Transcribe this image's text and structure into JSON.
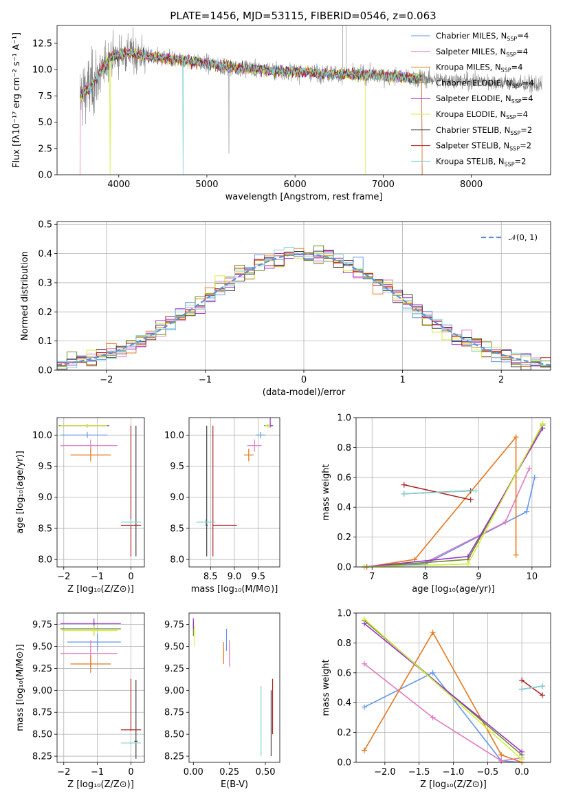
{
  "colors": {
    "chabrier_miles": "#6495ed",
    "salpeter_miles": "#e377c2",
    "kroupa_miles": "#e8751a",
    "chabrier_elodie": "#6b8e23",
    "salpeter_elodie": "#9932cc",
    "kroupa_elodie": "#d4ed3a",
    "chabrier_stelib": "#404040",
    "salpeter_stelib": "#b22222",
    "kroupa_stelib": "#87d3d3",
    "data": "#808080",
    "normal": "#5b8fd8"
  },
  "chart_data": [
    {
      "id": "spectrum",
      "type": "line",
      "title": "PLATE=1456, MJD=53115, FIBERID=0546, z=0.063",
      "xlabel": "wavelength [Angstrom, rest frame]",
      "ylabel": "Flux [fλ10⁻¹⁷ erg cm⁻² s⁻¹ A⁻¹]",
      "xlim": [
        3300,
        8900
      ],
      "ylim": [
        0,
        14.2
      ],
      "xticks": [
        4000,
        5000,
        6000,
        7000,
        8000
      ],
      "yticks": [
        0.0,
        2.5,
        5.0,
        7.5,
        10.0,
        12.5
      ],
      "xticklabels": [
        "4000",
        "5000",
        "6000",
        "7000",
        "8000"
      ],
      "yticklabels": [
        "0.0",
        "2.5",
        "5.0",
        "7.5",
        "10.0",
        "12.5"
      ],
      "grid": false,
      "legend_position": "top-right",
      "data_trend": {
        "x": [
          3560,
          3700,
          3900,
          4100,
          4400,
          4800,
          5200,
          5600,
          6000,
          6400,
          6800,
          7200,
          7500,
          8000,
          8300,
          8800
        ],
        "y": [
          7.5,
          8.5,
          11.2,
          11.6,
          11.2,
          10.8,
          10.3,
          10.0,
          9.8,
          9.6,
          9.5,
          9.3,
          9.1,
          8.9,
          8.8,
          8.5
        ]
      },
      "models_range": [
        3560,
        7440
      ],
      "legend": [
        {
          "key": "chabrier_miles",
          "label": "Chabrier MILES, N",
          "sub": "SSP",
          "suffix": "=4"
        },
        {
          "key": "salpeter_miles",
          "label": "Salpeter MILES, N",
          "sub": "SSP",
          "suffix": "=4"
        },
        {
          "key": "kroupa_miles",
          "label": "Kroupa MILES, N",
          "sub": "SSP",
          "suffix": "=4"
        },
        {
          "key": "chabrier_elodie",
          "label": "Chabrier ELODIE, N",
          "sub": "SSP",
          "suffix": "=4"
        },
        {
          "key": "salpeter_elodie",
          "label": "Salpeter ELODIE, N",
          "sub": "SSP",
          "suffix": "=4"
        },
        {
          "key": "kroupa_elodie",
          "label": "Kroupa ELODIE, N",
          "sub": "SSP",
          "suffix": "=4"
        },
        {
          "key": "chabrier_stelib",
          "label": "Chabrier STELIB, N",
          "sub": "SSP",
          "suffix": "=2"
        },
        {
          "key": "salpeter_stelib",
          "label": "Salpeter STELIB, N",
          "sub": "SSP",
          "suffix": "=2"
        },
        {
          "key": "kroupa_stelib",
          "label": "Kroupa STELIB, N",
          "sub": "SSP",
          "suffix": "=2"
        }
      ]
    },
    {
      "id": "residuals",
      "type": "histogram",
      "xlabel": "(data-model)/error",
      "ylabel": "Normed distribution",
      "xlim": [
        -2.5,
        2.5
      ],
      "ylim": [
        0,
        0.51
      ],
      "xticks": [
        -2,
        -1,
        0,
        1,
        2
      ],
      "yticks": [
        0.0,
        0.1,
        0.2,
        0.3,
        0.4,
        0.5
      ],
      "xticklabels": [
        "−2",
        "−1",
        "0",
        "1",
        "2"
      ],
      "yticklabels": [
        "0.0",
        "0.1",
        "0.2",
        "0.3",
        "0.4",
        "0.5"
      ],
      "grid": true,
      "legend_position": "top-right",
      "bin_width": 0.1,
      "normal_legend": "𝒩(0, 1)"
    },
    {
      "id": "age_vs_Z",
      "type": "errorbar",
      "xlabel": "Z [log₁₀(Z/Z⊙)]",
      "ylabel": "age  [log₁₀(age/yr)]",
      "xlim": [
        -2.2,
        0.4
      ],
      "ylim": [
        7.88,
        10.28
      ],
      "xticks": [
        -2,
        -1,
        0
      ],
      "xticklabels": [
        "−2",
        "−1",
        "0"
      ],
      "yticks": [
        8.0,
        8.5,
        9.0,
        9.5,
        10.0
      ],
      "yticklabels": [
        "8.0",
        "8.5",
        "9.0",
        "9.5",
        "10.0"
      ],
      "grid": true,
      "points": [
        {
          "c": "chabrier_miles",
          "x": -1.3,
          "y": 10.0,
          "xerr": [
            0.8,
            0.6
          ],
          "yerr": [
            0.05,
            0.05
          ]
        },
        {
          "c": "salpeter_miles",
          "x": -1.2,
          "y": 9.83,
          "xerr": [
            0.9,
            0.8
          ],
          "yerr": [
            0.1,
            0.1
          ]
        },
        {
          "c": "kroupa_miles",
          "x": -1.2,
          "y": 9.68,
          "xerr": [
            0.6,
            0.6
          ],
          "yerr": [
            0.1,
            0.1
          ]
        },
        {
          "c": "chabrier_elodie",
          "x": -1.3,
          "y": 10.15,
          "xerr": [
            0.85,
            0.65
          ],
          "yerr": [
            0.03,
            0.03
          ]
        },
        {
          "c": "salpeter_elodie",
          "x": -1.3,
          "y": 10.15,
          "xerr": [
            0.8,
            0.65
          ],
          "yerr": [
            0.03,
            0.03
          ]
        },
        {
          "c": "kroupa_elodie",
          "x": -1.3,
          "y": 10.15,
          "xerr": [
            0.8,
            0.6
          ],
          "yerr": [
            0.03,
            0.03
          ]
        },
        {
          "c": "chabrier_stelib",
          "x": 0.15,
          "y": 8.55,
          "xerr": [
            0.05,
            0.05
          ],
          "yerr": [
            0.5,
            1.6
          ]
        },
        {
          "c": "salpeter_stelib",
          "x": 0.0,
          "y": 8.55,
          "xerr": [
            0.3,
            0.3
          ],
          "yerr": [
            0.5,
            1.6
          ]
        },
        {
          "c": "kroupa_stelib",
          "x": 0.0,
          "y": 8.6,
          "xerr": [
            0.3,
            0.3
          ],
          "yerr": [
            0.05,
            0.05
          ]
        }
      ]
    },
    {
      "id": "age_vs_mass",
      "type": "errorbar",
      "xlabel": "mass [log₁₀(M/M⊙)]",
      "ylabel": "",
      "xlim": [
        8.05,
        9.95
      ],
      "ylim": [
        7.88,
        10.28
      ],
      "xticks": [
        8.5,
        9.0,
        9.5
      ],
      "xticklabels": [
        "8.5",
        "9.0",
        "9.5"
      ],
      "yticks": [
        8.0,
        8.5,
        9.0,
        9.5,
        10.0
      ],
      "yticklabels": [
        "8.0",
        "8.5",
        "9.0",
        "9.5",
        "10.0"
      ],
      "grid": true,
      "points": [
        {
          "c": "chabrier_miles",
          "x": 9.55,
          "y": 10.0,
          "xerr": [
            0.1,
            0.1
          ],
          "yerr": [
            0.05,
            0.05
          ]
        },
        {
          "c": "salpeter_miles",
          "x": 9.42,
          "y": 9.83,
          "xerr": [
            0.15,
            0.15
          ],
          "yerr": [
            0.1,
            0.1
          ]
        },
        {
          "c": "kroupa_miles",
          "x": 9.3,
          "y": 9.68,
          "xerr": [
            0.1,
            0.1
          ],
          "yerr": [
            0.1,
            0.1
          ]
        },
        {
          "c": "chabrier_elodie",
          "x": 9.7,
          "y": 10.15,
          "xerr": [
            0.08,
            0.08
          ],
          "yerr": [
            0.03,
            0.03
          ]
        },
        {
          "c": "salpeter_elodie",
          "x": 9.75,
          "y": 10.15,
          "xerr": [
            0.06,
            0.06
          ],
          "yerr": [
            0.03,
            0.15
          ]
        },
        {
          "c": "kroupa_elodie",
          "x": 9.7,
          "y": 10.15,
          "xerr": [
            0.05,
            0.05
          ],
          "yerr": [
            0.03,
            0.03
          ]
        },
        {
          "c": "chabrier_stelib",
          "x": 8.42,
          "y": 8.55,
          "xerr": [
            0.02,
            0.02
          ],
          "yerr": [
            0.5,
            1.6
          ]
        },
        {
          "c": "salpeter_stelib",
          "x": 8.55,
          "y": 8.55,
          "xerr": [
            0.01,
            0.5
          ],
          "yerr": [
            0.5,
            1.6
          ]
        },
        {
          "c": "kroupa_stelib",
          "x": 8.4,
          "y": 8.6,
          "xerr": [
            0.2,
            0.2
          ],
          "yerr": [
            0.05,
            0.05
          ]
        }
      ]
    },
    {
      "id": "weight_vs_age",
      "type": "line",
      "xlabel": "age  [log₁₀(age/yr)]",
      "ylabel": "mass weight",
      "xlim": [
        6.7,
        10.35
      ],
      "ylim": [
        0,
        1.0
      ],
      "xticks": [
        7,
        8,
        9,
        10
      ],
      "xticklabels": [
        "7",
        "8",
        "9",
        "10"
      ],
      "yticks": [
        0.0,
        0.2,
        0.4,
        0.6,
        0.8,
        1.0
      ],
      "yticklabels": [
        "0.0",
        "0.2",
        "0.4",
        "0.6",
        "0.8",
        "1.0"
      ],
      "grid": true,
      "series": [
        {
          "c": "chabrier_miles",
          "x": [
            6.9,
            8.0,
            9.9,
            10.05
          ],
          "y": [
            0.0,
            0.02,
            0.37,
            0.6
          ]
        },
        {
          "c": "salpeter_miles",
          "x": [
            6.9,
            8.0,
            9.5,
            9.95
          ],
          "y": [
            0.0,
            0.03,
            0.3,
            0.66
          ]
        },
        {
          "c": "kroupa_miles",
          "x": [
            6.9,
            7.8,
            9.7,
            9.7
          ],
          "y": [
            0.0,
            0.05,
            0.87,
            0.08
          ]
        },
        {
          "c": "chabrier_elodie",
          "x": [
            6.85,
            8.8,
            10.2
          ],
          "y": [
            0.0,
            0.05,
            0.95
          ]
        },
        {
          "c": "salpeter_elodie",
          "x": [
            6.85,
            8.8,
            10.2
          ],
          "y": [
            0.0,
            0.07,
            0.93
          ]
        },
        {
          "c": "kroupa_elodie",
          "x": [
            6.85,
            8.8,
            10.2
          ],
          "y": [
            0.0,
            0.02,
            0.96
          ]
        },
        {
          "c": "chabrier_stelib",
          "x": [
            7.6,
            8.85
          ],
          "y": [
            0.49,
            0.51
          ]
        },
        {
          "c": "salpeter_stelib",
          "x": [
            7.6,
            8.85
          ],
          "y": [
            0.55,
            0.45
          ]
        },
        {
          "c": "kroupa_stelib",
          "x": [
            7.6,
            8.95
          ],
          "y": [
            0.49,
            0.51
          ]
        }
      ]
    },
    {
      "id": "mass_vs_Z",
      "type": "errorbar",
      "xlabel": "Z [log₁₀(Z/Z⊙)]",
      "ylabel": "mass [log₁₀(M/M⊙)]",
      "xlim": [
        -2.2,
        0.4
      ],
      "ylim": [
        8.18,
        9.88
      ],
      "xticks": [
        -2,
        -1,
        0
      ],
      "xticklabels": [
        "−2",
        "−1",
        "0"
      ],
      "yticks": [
        8.25,
        8.5,
        8.75,
        9.0,
        9.25,
        9.5,
        9.75
      ],
      "yticklabels": [
        "8.25",
        "8.50",
        "8.75",
        "9.00",
        "9.25",
        "9.50",
        "9.75"
      ],
      "grid": true,
      "points": [
        {
          "c": "chabrier_miles",
          "x": -1.0,
          "y": 9.55,
          "xerr": [
            0.9,
            0.7
          ],
          "yerr": [
            0.1,
            0.1
          ]
        },
        {
          "c": "salpeter_miles",
          "x": -1.2,
          "y": 9.42,
          "xerr": [
            0.9,
            0.8
          ],
          "yerr": [
            0.15,
            0.15
          ]
        },
        {
          "c": "kroupa_miles",
          "x": -1.2,
          "y": 9.3,
          "xerr": [
            0.6,
            0.6
          ],
          "yerr": [
            0.1,
            0.1
          ]
        },
        {
          "c": "chabrier_elodie",
          "x": -1.1,
          "y": 9.7,
          "xerr": [
            1.0,
            0.8
          ],
          "yerr": [
            0.08,
            0.08
          ]
        },
        {
          "c": "salpeter_elodie",
          "x": -1.1,
          "y": 9.76,
          "xerr": [
            1.0,
            0.8
          ],
          "yerr": [
            0.06,
            0.06
          ]
        },
        {
          "c": "kroupa_elodie",
          "x": -1.1,
          "y": 9.68,
          "xerr": [
            0.95,
            0.7
          ],
          "yerr": [
            0.06,
            0.06
          ]
        },
        {
          "c": "chabrier_stelib",
          "x": 0.15,
          "y": 8.42,
          "xerr": [
            0.05,
            0.05
          ],
          "yerr": [
            0.2,
            0.7
          ]
        },
        {
          "c": "salpeter_stelib",
          "x": 0.0,
          "y": 8.55,
          "xerr": [
            0.3,
            0.3
          ],
          "yerr": [
            0.01,
            0.58
          ]
        },
        {
          "c": "kroupa_stelib",
          "x": 0.0,
          "y": 8.4,
          "xerr": [
            0.3,
            0.3
          ],
          "yerr": [
            0.02,
            0.02
          ]
        }
      ]
    },
    {
      "id": "mass_vs_ebv",
      "type": "errorbar",
      "xlabel": "E(B-V)",
      "ylabel": "",
      "xlim": [
        -0.03,
        0.6
      ],
      "ylim": [
        8.18,
        9.88
      ],
      "xticks": [
        0.0,
        0.25,
        0.5
      ],
      "xticklabels": [
        "0.00",
        "0.25",
        "0.50"
      ],
      "yticks": [
        8.25,
        8.5,
        8.75,
        9.0,
        9.25,
        9.5,
        9.75
      ],
      "yticklabels": [
        "8.25",
        "8.50",
        "8.75",
        "9.00",
        "9.25",
        "9.50",
        "9.75"
      ],
      "grid": false,
      "points": [
        {
          "c": "chabrier_miles",
          "x": 0.23,
          "y": 9.55,
          "xerr": [
            0.0,
            0.0
          ],
          "yerr": [
            0.1,
            0.15
          ]
        },
        {
          "c": "salpeter_miles",
          "x": 0.25,
          "y": 9.42,
          "xerr": [
            0.0,
            0.0
          ],
          "yerr": [
            0.15,
            0.15
          ]
        },
        {
          "c": "kroupa_miles",
          "x": 0.21,
          "y": 9.4,
          "xerr": [
            0.0,
            0.0
          ],
          "yerr": [
            0.1,
            0.15
          ]
        },
        {
          "c": "chabrier_elodie",
          "x": 0.0,
          "y": 9.7,
          "xerr": [
            0.0,
            0.0
          ],
          "yerr": [
            0.08,
            0.08
          ]
        },
        {
          "c": "salpeter_elodie",
          "x": 0.0,
          "y": 9.76,
          "xerr": [
            0.0,
            0.0
          ],
          "yerr": [
            0.06,
            0.06
          ]
        },
        {
          "c": "kroupa_elodie",
          "x": 0.01,
          "y": 9.62,
          "xerr": [
            0.0,
            0.0
          ],
          "yerr": [
            0.12,
            0.12
          ]
        },
        {
          "c": "chabrier_stelib",
          "x": 0.54,
          "y": 8.6,
          "xerr": [
            0.0,
            0.0
          ],
          "yerr": [
            0.35,
            0.4
          ]
        },
        {
          "c": "salpeter_stelib",
          "x": 0.55,
          "y": 8.7,
          "xerr": [
            0.0,
            0.0
          ],
          "yerr": [
            0.2,
            0.43
          ]
        },
        {
          "c": "kroupa_stelib",
          "x": 0.47,
          "y": 8.6,
          "xerr": [
            0.0,
            0.0
          ],
          "yerr": [
            0.35,
            0.45
          ]
        }
      ]
    },
    {
      "id": "weight_vs_Z",
      "type": "line",
      "xlabel": "Z [log₁₀(Z/Z⊙)]",
      "ylabel": "mass weight",
      "xlim": [
        -2.42,
        0.42
      ],
      "ylim": [
        0,
        1.0
      ],
      "xticks": [
        -2.0,
        -1.5,
        -1.0,
        -0.5,
        0.0
      ],
      "xticklabels": [
        "−2.0",
        "−1.5",
        "−1.0",
        "−0.5",
        "0.0"
      ],
      "yticks": [
        0.0,
        0.2,
        0.4,
        0.6,
        0.8,
        1.0
      ],
      "yticklabels": [
        "0.0",
        "0.2",
        "0.4",
        "0.6",
        "0.8",
        "1.0"
      ],
      "grid": true,
      "series": [
        {
          "c": "chabrier_miles",
          "x": [
            -2.3,
            -1.3,
            -0.3,
            0.0
          ],
          "y": [
            0.37,
            0.6,
            0.01,
            0.0
          ]
        },
        {
          "c": "salpeter_miles",
          "x": [
            -2.3,
            -1.3,
            -0.3,
            0.0
          ],
          "y": [
            0.66,
            0.3,
            0.01,
            0.03
          ]
        },
        {
          "c": "kroupa_miles",
          "x": [
            -2.3,
            -1.3,
            -0.3,
            0.0
          ],
          "y": [
            0.08,
            0.87,
            0.05,
            0.0
          ]
        },
        {
          "c": "chabrier_elodie",
          "x": [
            -2.3,
            0.0
          ],
          "y": [
            0.95,
            0.05
          ]
        },
        {
          "c": "salpeter_elodie",
          "x": [
            -2.3,
            0.0
          ],
          "y": [
            0.93,
            0.07
          ]
        },
        {
          "c": "kroupa_elodie",
          "x": [
            -2.3,
            0.0
          ],
          "y": [
            0.96,
            0.02
          ]
        },
        {
          "c": "chabrier_stelib",
          "x": [
            0.0,
            0.3
          ],
          "y": [
            0.49,
            0.51
          ]
        },
        {
          "c": "salpeter_stelib",
          "x": [
            0.0,
            0.3
          ],
          "y": [
            0.55,
            0.45
          ]
        },
        {
          "c": "kroupa_stelib",
          "x": [
            0.0,
            0.3
          ],
          "y": [
            0.49,
            0.51
          ]
        }
      ]
    }
  ]
}
